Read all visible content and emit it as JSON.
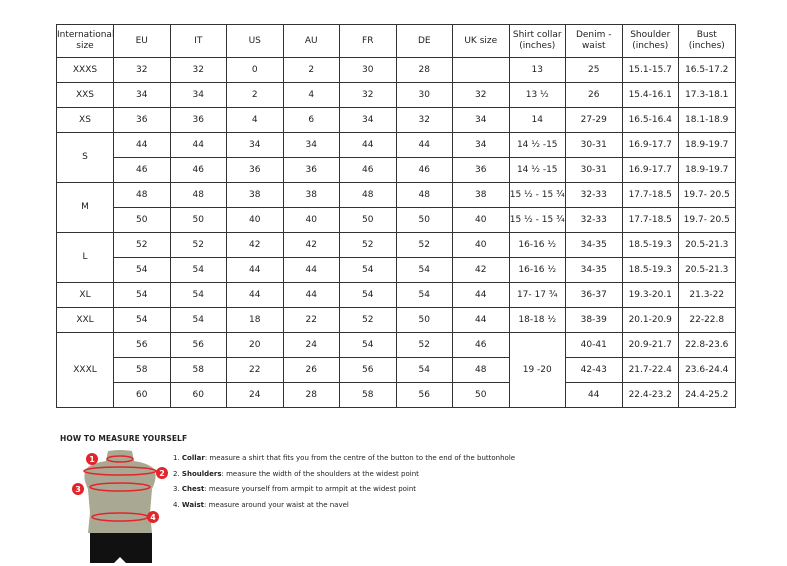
{
  "table": {
    "headers": [
      "International size",
      "EU",
      "IT",
      "US",
      "AU",
      "FR",
      "DE",
      "UK size",
      "Shirt collar (inches)",
      "Denim - waist",
      "Shoulder (inches)",
      "Bust (inches)"
    ],
    "groups": [
      {
        "size": "XXXS",
        "rows": [
          [
            "32",
            "32",
            "0",
            "2",
            "30",
            "28",
            "",
            "13",
            "25",
            "15.1-15.7",
            "16.5-17.2"
          ]
        ]
      },
      {
        "size": "XXS",
        "rows": [
          [
            "34",
            "34",
            "2",
            "4",
            "32",
            "30",
            "32",
            "13 ½",
            "26",
            "15.4-16.1",
            "17.3-18.1"
          ]
        ]
      },
      {
        "size": "XS",
        "rows": [
          [
            "36",
            "36",
            "4",
            "6",
            "34",
            "32",
            "34",
            "14",
            "27-29",
            "16.5-16.4",
            "18.1-18.9"
          ]
        ]
      },
      {
        "size": "S",
        "rows": [
          [
            "44",
            "44",
            "34",
            "34",
            "44",
            "44",
            "34",
            "14 ½ -15",
            "30-31",
            "16.9-17.7",
            "18.9-19.7"
          ],
          [
            "46",
            "46",
            "36",
            "36",
            "46",
            "46",
            "36",
            "14 ½ -15",
            "30-31",
            "16.9-17.7",
            "18.9-19.7"
          ]
        ]
      },
      {
        "size": "M",
        "rows": [
          [
            "48",
            "48",
            "38",
            "38",
            "48",
            "48",
            "38",
            "15 ½ - 15 ¾",
            "32-33",
            "17.7-18.5",
            "19.7- 20.5"
          ],
          [
            "50",
            "50",
            "40",
            "40",
            "50",
            "50",
            "40",
            "15 ½ - 15 ¾",
            "32-33",
            "17.7-18.5",
            "19.7- 20.5"
          ]
        ]
      },
      {
        "size": "L",
        "rows": [
          [
            "52",
            "52",
            "42",
            "42",
            "52",
            "52",
            "40",
            "16-16 ½",
            "34-35",
            "18.5-19.3",
            "20.5-21.3"
          ],
          [
            "54",
            "54",
            "44",
            "44",
            "54",
            "54",
            "42",
            "16-16 ½",
            "34-35",
            "18.5-19.3",
            "20.5-21.3"
          ]
        ]
      },
      {
        "size": "XL",
        "rows": [
          [
            "54",
            "54",
            "44",
            "44",
            "54",
            "54",
            "44",
            "17- 17 ¾",
            "36-37",
            "19.3-20.1",
            "21.3-22"
          ]
        ]
      },
      {
        "size": "XXL",
        "rows": [
          [
            "54",
            "54",
            "18",
            "22",
            "52",
            "50",
            "44",
            "18-18 ½",
            "38-39",
            "20.1-20.9",
            "22-22.8"
          ]
        ]
      },
      {
        "size": "XXXL",
        "collar_merged": "19 -20",
        "rows": [
          [
            "56",
            "56",
            "20",
            "24",
            "54",
            "52",
            "46",
            "19 -20",
            "40-41",
            "20.9-21.7",
            "22.8-23.6"
          ],
          [
            "58",
            "58",
            "22",
            "26",
            "56",
            "54",
            "48",
            "19 -20",
            "42-43",
            "21.7-22.4",
            "23.6-24.4"
          ],
          [
            "60",
            "60",
            "24",
            "28",
            "58",
            "56",
            "50",
            "19 -20",
            "44",
            "22.4-23.2",
            "24.4-25.2"
          ]
        ]
      }
    ]
  },
  "measure": {
    "title": "HOW TO MEASURE YOURSELF",
    "steps": [
      {
        "num": "1.",
        "label": "Collar",
        "text": ": measure a shirt that fits you from the centre of the button to the end of the buttonhole"
      },
      {
        "num": "2.",
        "label": "Shoulders",
        "text": ": measure the width of the shoulders at the widest point"
      },
      {
        "num": "3.",
        "label": "Chest",
        "text": ": measure yourself from armpit to armpit at the widest point"
      },
      {
        "num": "4.",
        "label": "Waist",
        "text": ": measure around your waist at the navel"
      }
    ],
    "markers": [
      "1",
      "2",
      "3",
      "4"
    ],
    "colors": {
      "marker": "#e3242b",
      "torso": "#a9a892",
      "shorts": "#111111"
    }
  }
}
